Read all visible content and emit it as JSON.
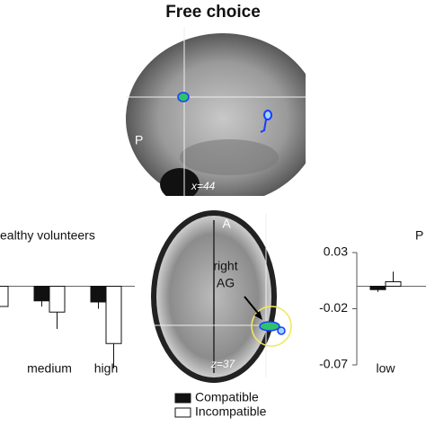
{
  "figure": {
    "title": "Free choice",
    "sagittal": {
      "side_label": "P",
      "slice_label": "x=44"
    },
    "axial": {
      "front_label": "A",
      "region_label_1": "right",
      "region_label_2": "AG",
      "slice_label": "z=37"
    }
  },
  "chart_data": [
    {
      "type": "bar",
      "title": "ealthy volunteers",
      "categories": [
        null,
        "medium",
        "high"
      ],
      "series": [
        {
          "name": "Compatible",
          "color": "#111111",
          "values": [
            null,
            -0.013,
            -0.014
          ],
          "errors": [
            null,
            0.005,
            0.006
          ]
        },
        {
          "name": "Incompatible",
          "color": "#ffffff",
          "values": [
            -0.018,
            -0.023,
            -0.051
          ],
          "errors": [
            null,
            0.015,
            0.022
          ]
        }
      ],
      "ylim": [
        -0.07,
        0.03
      ]
    },
    {
      "type": "bar",
      "title": "P",
      "categories": [
        "low"
      ],
      "series": [
        {
          "name": "Compatible",
          "color": "#111111",
          "values": [
            -0.003
          ],
          "errors": [
            0.002
          ]
        },
        {
          "name": "Incompatible",
          "color": "#ffffff",
          "values": [
            0.004
          ],
          "errors": [
            0.009
          ]
        }
      ],
      "ylim": [
        -0.07,
        0.03
      ],
      "yticks": [
        0.03,
        -0.02,
        -0.07
      ]
    }
  ]
}
